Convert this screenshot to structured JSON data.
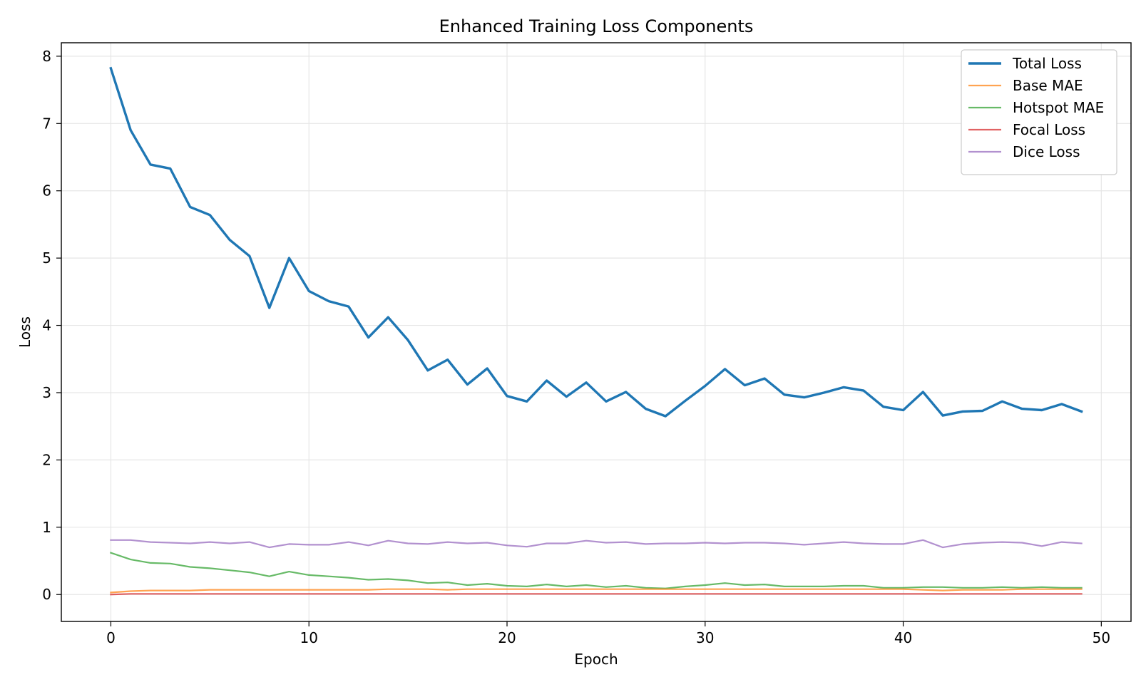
{
  "chart_data": {
    "type": "line",
    "title": "Enhanced Training Loss Components",
    "xlabel": "Epoch",
    "ylabel": "Loss",
    "xlim": [
      -2.5,
      51.5
    ],
    "ylim": [
      -0.4,
      8.2
    ],
    "xticks": [
      0,
      10,
      20,
      30,
      40,
      50
    ],
    "yticks": [
      0,
      1,
      2,
      3,
      4,
      5,
      6,
      7,
      8
    ],
    "grid": true,
    "legend_position": "top-right",
    "x": [
      0,
      1,
      2,
      3,
      4,
      5,
      6,
      7,
      8,
      9,
      10,
      11,
      12,
      13,
      14,
      15,
      16,
      17,
      18,
      19,
      20,
      21,
      22,
      23,
      24,
      25,
      26,
      27,
      28,
      29,
      30,
      31,
      32,
      33,
      34,
      35,
      36,
      37,
      38,
      39,
      40,
      41,
      42,
      43,
      44,
      45,
      46,
      47,
      48,
      49
    ],
    "series": [
      {
        "name": "Total Loss",
        "color": "#1f77b4",
        "values": [
          7.82,
          6.9,
          6.39,
          6.33,
          5.76,
          5.64,
          5.27,
          5.03,
          4.26,
          5.0,
          4.51,
          4.36,
          4.28,
          3.82,
          4.12,
          3.78,
          3.33,
          3.49,
          3.12,
          3.36,
          2.95,
          2.87,
          3.18,
          2.94,
          3.15,
          2.87,
          3.01,
          2.76,
          2.65,
          2.88,
          3.1,
          3.35,
          3.11,
          3.21,
          2.97,
          2.93,
          3.0,
          3.08,
          3.03,
          2.79,
          2.74,
          3.01,
          2.66,
          2.72,
          2.73,
          2.87,
          2.76,
          2.74,
          2.83,
          2.72
        ]
      },
      {
        "name": "Base MAE",
        "color": "#ff7f0e",
        "values": [
          0.03,
          0.05,
          0.06,
          0.06,
          0.06,
          0.07,
          0.07,
          0.07,
          0.07,
          0.07,
          0.07,
          0.07,
          0.07,
          0.07,
          0.08,
          0.08,
          0.08,
          0.07,
          0.08,
          0.08,
          0.08,
          0.08,
          0.08,
          0.08,
          0.08,
          0.08,
          0.08,
          0.08,
          0.08,
          0.08,
          0.08,
          0.08,
          0.08,
          0.08,
          0.08,
          0.08,
          0.08,
          0.08,
          0.08,
          0.08,
          0.08,
          0.07,
          0.06,
          0.07,
          0.07,
          0.07,
          0.08,
          0.08,
          0.08,
          0.08
        ]
      },
      {
        "name": "Hotspot MAE",
        "color": "#2ca02c",
        "values": [
          0.62,
          0.52,
          0.47,
          0.46,
          0.41,
          0.39,
          0.36,
          0.33,
          0.27,
          0.34,
          0.29,
          0.27,
          0.25,
          0.22,
          0.23,
          0.21,
          0.17,
          0.18,
          0.14,
          0.16,
          0.13,
          0.12,
          0.15,
          0.12,
          0.14,
          0.11,
          0.13,
          0.1,
          0.09,
          0.12,
          0.14,
          0.17,
          0.14,
          0.15,
          0.12,
          0.12,
          0.12,
          0.13,
          0.13,
          0.1,
          0.1,
          0.11,
          0.11,
          0.1,
          0.1,
          0.11,
          0.1,
          0.11,
          0.1,
          0.1
        ]
      },
      {
        "name": "Focal Loss",
        "color": "#d62728",
        "values": [
          0.0,
          0.01,
          0.01,
          0.01,
          0.01,
          0.01,
          0.01,
          0.01,
          0.01,
          0.01,
          0.01,
          0.01,
          0.01,
          0.01,
          0.01,
          0.01,
          0.01,
          0.01,
          0.01,
          0.01,
          0.01,
          0.01,
          0.01,
          0.01,
          0.01,
          0.01,
          0.01,
          0.01,
          0.01,
          0.01,
          0.01,
          0.01,
          0.01,
          0.01,
          0.01,
          0.01,
          0.01,
          0.01,
          0.01,
          0.01,
          0.01,
          0.01,
          0.01,
          0.01,
          0.01,
          0.01,
          0.01,
          0.01,
          0.01,
          0.01
        ]
      },
      {
        "name": "Dice Loss",
        "color": "#9467bd",
        "values": [
          0.81,
          0.81,
          0.78,
          0.77,
          0.76,
          0.78,
          0.76,
          0.78,
          0.7,
          0.75,
          0.74,
          0.74,
          0.78,
          0.73,
          0.8,
          0.76,
          0.75,
          0.78,
          0.76,
          0.77,
          0.73,
          0.71,
          0.76,
          0.76,
          0.8,
          0.77,
          0.78,
          0.75,
          0.76,
          0.76,
          0.77,
          0.76,
          0.77,
          0.77,
          0.76,
          0.74,
          0.76,
          0.78,
          0.76,
          0.75,
          0.75,
          0.81,
          0.7,
          0.75,
          0.77,
          0.78,
          0.77,
          0.72,
          0.78,
          0.76
        ]
      }
    ]
  }
}
